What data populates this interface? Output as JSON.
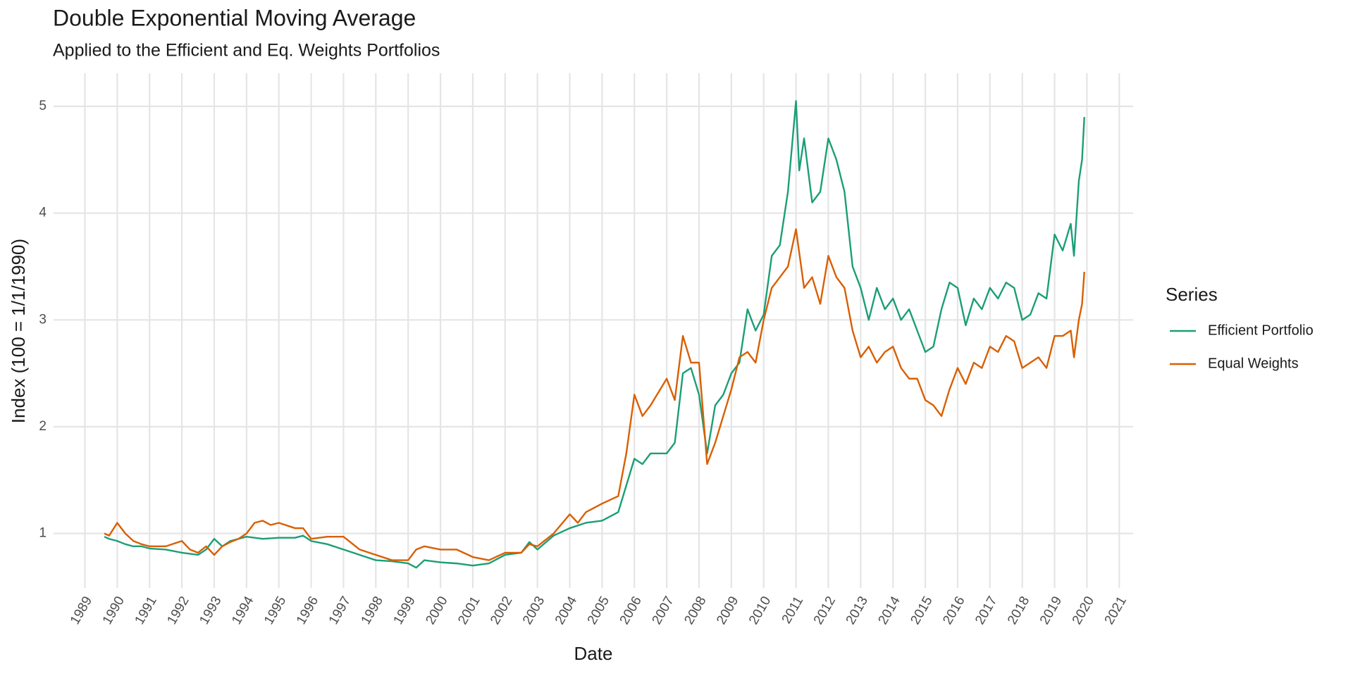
{
  "chart_data": {
    "type": "line",
    "title": "Double Exponential Moving Average",
    "subtitle": "Applied to the Efficient and Eq. Weights Portfolios",
    "x_label": "Date",
    "y_label": "Index (100 = 1/1/1990)",
    "legend_title": "Series",
    "legend": "right",
    "grid": true,
    "xlim": [
      1988.03,
      2021.43
    ],
    "xticks": [
      1989,
      1990,
      1991,
      1992,
      1993,
      1994,
      1995,
      1996,
      1997,
      1998,
      1999,
      2000,
      2001,
      2002,
      2003,
      2004,
      2005,
      2006,
      2007,
      2008,
      2009,
      2010,
      2011,
      2012,
      2013,
      2014,
      2015,
      2016,
      2017,
      2018,
      2019,
      2020,
      2021
    ],
    "ylim": [
      0.49,
      5.31
    ],
    "yticks": [
      1,
      2,
      3,
      4,
      5
    ],
    "series": [
      {
        "name": "Efficient Portfolio",
        "color": "#1b9e77",
        "x": [
          1989.6,
          1989.75,
          1990.0,
          1990.25,
          1990.5,
          1990.75,
          1991.0,
          1991.5,
          1992.0,
          1992.5,
          1992.75,
          1993.0,
          1993.25,
          1993.5,
          1993.75,
          1994.0,
          1994.5,
          1995.0,
          1995.5,
          1995.75,
          1996.0,
          1996.5,
          1997.0,
          1997.5,
          1998.0,
          1998.5,
          1999.0,
          1999.25,
          1999.5,
          2000.0,
          2000.5,
          2001.0,
          2001.5,
          2002.0,
          2002.5,
          2002.75,
          2003.0,
          2003.5,
          2004.0,
          2004.5,
          2005.0,
          2005.5,
          2005.75,
          2006.0,
          2006.25,
          2006.5,
          2007.0,
          2007.25,
          2007.5,
          2007.75,
          2008.0,
          2008.25,
          2008.5,
          2008.75,
          2009.0,
          2009.25,
          2009.5,
          2009.75,
          2010.0,
          2010.25,
          2010.5,
          2010.75,
          2011.0,
          2011.1,
          2011.25,
          2011.5,
          2011.75,
          2012.0,
          2012.25,
          2012.5,
          2012.75,
          2013.0,
          2013.25,
          2013.5,
          2013.75,
          2014.0,
          2014.25,
          2014.5,
          2014.75,
          2015.0,
          2015.25,
          2015.5,
          2015.75,
          2016.0,
          2016.25,
          2016.5,
          2016.75,
          2017.0,
          2017.25,
          2017.5,
          2017.75,
          2018.0,
          2018.25,
          2018.5,
          2018.75,
          2019.0,
          2019.25,
          2019.5,
          2019.6,
          2019.75,
          2019.85,
          2019.92
        ],
        "values": [
          0.97,
          0.95,
          0.93,
          0.9,
          0.88,
          0.88,
          0.86,
          0.85,
          0.82,
          0.8,
          0.85,
          0.95,
          0.88,
          0.93,
          0.95,
          0.97,
          0.95,
          0.96,
          0.96,
          0.98,
          0.93,
          0.9,
          0.85,
          0.8,
          0.75,
          0.74,
          0.72,
          0.68,
          0.75,
          0.73,
          0.72,
          0.7,
          0.72,
          0.8,
          0.82,
          0.92,
          0.85,
          0.98,
          1.05,
          1.1,
          1.12,
          1.2,
          1.45,
          1.7,
          1.65,
          1.75,
          1.75,
          1.85,
          2.5,
          2.55,
          2.3,
          1.75,
          2.2,
          2.3,
          2.5,
          2.6,
          3.1,
          2.9,
          3.05,
          3.6,
          3.7,
          4.2,
          5.05,
          4.4,
          4.7,
          4.1,
          4.2,
          4.7,
          4.5,
          4.2,
          3.5,
          3.3,
          3.0,
          3.3,
          3.1,
          3.2,
          3.0,
          3.1,
          2.9,
          2.7,
          2.75,
          3.1,
          3.35,
          3.3,
          2.95,
          3.2,
          3.1,
          3.3,
          3.2,
          3.35,
          3.3,
          3.0,
          3.05,
          3.25,
          3.2,
          3.8,
          3.65,
          3.9,
          3.6,
          4.3,
          4.5,
          4.9
        ]
      },
      {
        "name": "Equal Weights",
        "color": "#d95f02",
        "x": [
          1989.6,
          1989.75,
          1990.0,
          1990.25,
          1990.5,
          1990.75,
          1991.0,
          1991.5,
          1992.0,
          1992.25,
          1992.5,
          1992.75,
          1993.0,
          1993.25,
          1993.5,
          1993.75,
          1994.0,
          1994.25,
          1994.5,
          1994.75,
          1995.0,
          1995.5,
          1995.75,
          1996.0,
          1996.5,
          1997.0,
          1997.5,
          1998.0,
          1998.5,
          1999.0,
          1999.25,
          1999.5,
          2000.0,
          2000.5,
          2001.0,
          2001.5,
          2002.0,
          2002.5,
          2002.75,
          2003.0,
          2003.5,
          2004.0,
          2004.25,
          2004.5,
          2005.0,
          2005.5,
          2005.75,
          2006.0,
          2006.25,
          2006.5,
          2007.0,
          2007.25,
          2007.5,
          2007.75,
          2008.0,
          2008.25,
          2008.5,
          2008.75,
          2009.0,
          2009.25,
          2009.5,
          2009.75,
          2010.0,
          2010.25,
          2010.5,
          2010.75,
          2011.0,
          2011.25,
          2011.5,
          2011.75,
          2012.0,
          2012.25,
          2012.5,
          2012.75,
          2013.0,
          2013.25,
          2013.5,
          2013.75,
          2014.0,
          2014.25,
          2014.5,
          2014.75,
          2015.0,
          2015.25,
          2015.5,
          2015.75,
          2016.0,
          2016.25,
          2016.5,
          2016.75,
          2017.0,
          2017.25,
          2017.5,
          2017.75,
          2018.0,
          2018.25,
          2018.5,
          2018.75,
          2019.0,
          2019.25,
          2019.5,
          2019.6,
          2019.75,
          2019.85,
          2019.92
        ],
        "values": [
          1.0,
          0.98,
          1.1,
          1.0,
          0.93,
          0.9,
          0.88,
          0.88,
          0.93,
          0.85,
          0.82,
          0.88,
          0.8,
          0.88,
          0.92,
          0.95,
          1.0,
          1.1,
          1.12,
          1.08,
          1.1,
          1.05,
          1.05,
          0.95,
          0.97,
          0.97,
          0.85,
          0.8,
          0.75,
          0.75,
          0.85,
          0.88,
          0.85,
          0.85,
          0.78,
          0.75,
          0.82,
          0.82,
          0.9,
          0.88,
          1.0,
          1.18,
          1.1,
          1.2,
          1.28,
          1.35,
          1.75,
          2.3,
          2.1,
          2.2,
          2.45,
          2.25,
          2.85,
          2.6,
          2.6,
          1.65,
          1.85,
          2.1,
          2.35,
          2.65,
          2.7,
          2.6,
          3.0,
          3.3,
          3.4,
          3.5,
          3.85,
          3.3,
          3.4,
          3.15,
          3.6,
          3.4,
          3.3,
          2.9,
          2.65,
          2.75,
          2.6,
          2.7,
          2.75,
          2.55,
          2.45,
          2.45,
          2.25,
          2.2,
          2.1,
          2.35,
          2.55,
          2.4,
          2.6,
          2.55,
          2.75,
          2.7,
          2.85,
          2.8,
          2.55,
          2.6,
          2.65,
          2.55,
          2.85,
          2.85,
          2.9,
          2.65,
          3.0,
          3.15,
          3.45
        ]
      }
    ]
  }
}
